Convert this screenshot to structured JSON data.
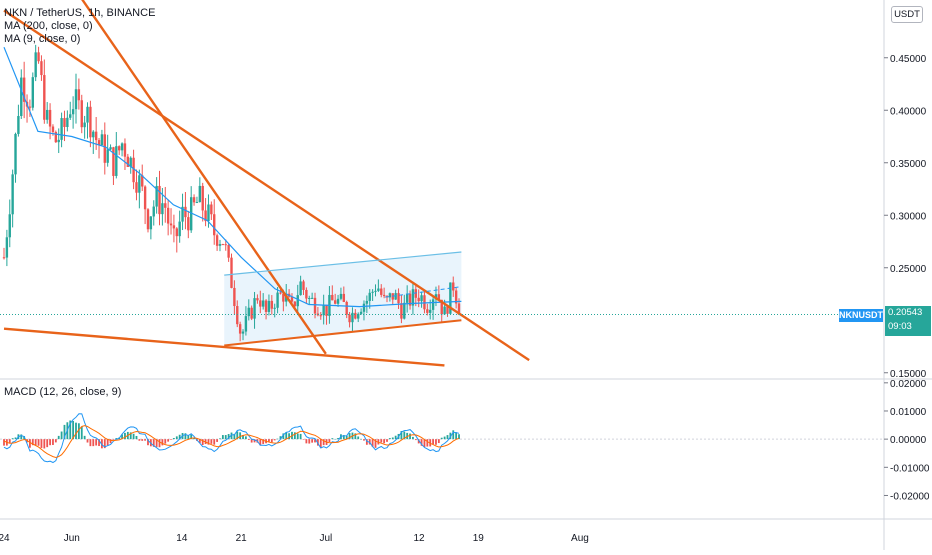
{
  "header": {
    "symbol_line": "NKN / TetherUS, 1h, BINANCE",
    "ma200_label": "MA (200, close, 0)",
    "ma9_label": "MA (9, close, 0)",
    "currency_button": "USDT"
  },
  "price_badge": {
    "symbol": "NKNUSDT",
    "price": "0.20543",
    "countdown": "09:03"
  },
  "macd": {
    "label": "MACD (12, 26, close, 9)"
  },
  "colors": {
    "up": "#26a69a",
    "down": "#ef5350",
    "trendline": "#e8631a",
    "channel": "#6bbfe6",
    "ma": "#2196f3",
    "signal": "#ff6d00"
  },
  "chart_data": [
    {
      "type": "candlestick",
      "title": "NKN / TetherUS, 1h, BINANCE",
      "y_ticks": [
        "0.45000",
        "0.40000",
        "0.35000",
        "0.30000",
        "0.25000",
        "0.15000"
      ],
      "ylim": [
        0.145,
        0.505
      ],
      "last_price": 0.20543,
      "x_tick_labels": [
        "24",
        "Jun",
        "14",
        "21",
        "Jul",
        "12",
        "19",
        "Aug"
      ],
      "close_path": [
        {
          "d": 0,
          "v": 0.26
        },
        {
          "d": 1,
          "v": 0.34
        },
        {
          "d": 2,
          "v": 0.43
        },
        {
          "d": 3,
          "v": 0.41
        },
        {
          "d": 4,
          "v": 0.45
        },
        {
          "d": 5,
          "v": 0.39
        },
        {
          "d": 6,
          "v": 0.37
        },
        {
          "d": 7,
          "v": 0.38
        },
        {
          "d": 8,
          "v": 0.41
        },
        {
          "d": 9,
          "v": 0.4
        },
        {
          "d": 10,
          "v": 0.395
        },
        {
          "d": 11,
          "v": 0.37
        },
        {
          "d": 12,
          "v": 0.36
        },
        {
          "d": 13,
          "v": 0.35
        },
        {
          "d": 14,
          "v": 0.37
        },
        {
          "d": 15,
          "v": 0.35
        },
        {
          "d": 16,
          "v": 0.33
        },
        {
          "d": 17,
          "v": 0.3
        },
        {
          "d": 18,
          "v": 0.315
        },
        {
          "d": 19,
          "v": 0.31
        },
        {
          "d": 20,
          "v": 0.27
        },
        {
          "d": 21,
          "v": 0.3
        },
        {
          "d": 22,
          "v": 0.3
        },
        {
          "d": 23,
          "v": 0.315
        },
        {
          "d": 24,
          "v": 0.3
        },
        {
          "d": 25,
          "v": 0.28
        },
        {
          "d": 26,
          "v": 0.275
        },
        {
          "d": 27,
          "v": 0.23
        },
        {
          "d": 28,
          "v": 0.185
        },
        {
          "d": 29,
          "v": 0.205
        },
        {
          "d": 30,
          "v": 0.225
        },
        {
          "d": 31,
          "v": 0.205
        },
        {
          "d": 32,
          "v": 0.22
        },
        {
          "d": 33,
          "v": 0.225
        },
        {
          "d": 34,
          "v": 0.21
        },
        {
          "d": 35,
          "v": 0.235
        },
        {
          "d": 36,
          "v": 0.22
        },
        {
          "d": 37,
          "v": 0.215
        },
        {
          "d": 38,
          "v": 0.21
        },
        {
          "d": 39,
          "v": 0.22
        },
        {
          "d": 40,
          "v": 0.215
        },
        {
          "d": 41,
          "v": 0.205
        },
        {
          "d": 42,
          "v": 0.215
        },
        {
          "d": 43,
          "v": 0.22
        },
        {
          "d": 44,
          "v": 0.235
        },
        {
          "d": 45,
          "v": 0.215
        },
        {
          "d": 46,
          "v": 0.225
        },
        {
          "d": 47,
          "v": 0.21
        },
        {
          "d": 48,
          "v": 0.22
        },
        {
          "d": 49,
          "v": 0.225
        },
        {
          "d": 50,
          "v": 0.215
        },
        {
          "d": 51,
          "v": 0.23
        },
        {
          "d": 52,
          "v": 0.205
        },
        {
          "d": 53,
          "v": 0.235
        },
        {
          "d": 54,
          "v": 0.205
        }
      ],
      "ma200_path": [
        {
          "d": 0,
          "v": 0.46
        },
        {
          "d": 4,
          "v": 0.38
        },
        {
          "d": 8,
          "v": 0.375
        },
        {
          "d": 12,
          "v": 0.365
        },
        {
          "d": 16,
          "v": 0.34
        },
        {
          "d": 20,
          "v": 0.31
        },
        {
          "d": 24,
          "v": 0.295
        },
        {
          "d": 28,
          "v": 0.26
        },
        {
          "d": 32,
          "v": 0.23
        },
        {
          "d": 36,
          "v": 0.215
        },
        {
          "d": 42,
          "v": 0.213
        },
        {
          "d": 48,
          "v": 0.216
        },
        {
          "d": 54,
          "v": 0.218
        }
      ],
      "drawings": [
        {
          "name": "falling-trendline-steep",
          "from": {
            "d": 8,
            "v": 0.52
          },
          "to": {
            "d": 38,
            "v": 0.168
          }
        },
        {
          "name": "falling-trendline-upper",
          "from": {
            "d": 0,
            "v": 0.495
          },
          "to": {
            "d": 62,
            "v": 0.162
          }
        },
        {
          "name": "support-line-lower",
          "from": {
            "d": 0,
            "v": 0.192
          },
          "to": {
            "d": 52,
            "v": 0.157
          }
        },
        {
          "name": "channel-base-line",
          "from": {
            "d": 26,
            "v": 0.176
          },
          "to": {
            "d": 54,
            "v": 0.2
          }
        },
        {
          "name": "channel-top-line",
          "from": {
            "d": 26,
            "v": 0.243
          },
          "to": {
            "d": 54,
            "v": 0.265
          }
        }
      ]
    },
    {
      "type": "histogram",
      "title": "MACD (12, 26, close, 9)",
      "y_ticks": [
        "0.02000",
        "0.01000",
        "0.00000",
        "-0.01000",
        "-0.02000"
      ],
      "ylim": [
        -0.028,
        0.021
      ]
    }
  ]
}
